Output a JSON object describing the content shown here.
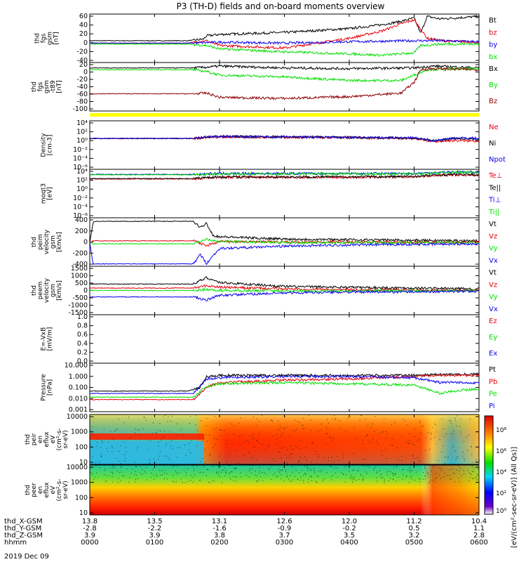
{
  "title": "P3 (TH-D) fields and on-board moments overview",
  "colors": {
    "black": "#000000",
    "red": "#e8000b",
    "green": "#00e000",
    "blue": "#0a00f0",
    "darkred": "#8b0000",
    "yellow": "#ffff00",
    "frame": "#000000"
  },
  "colorbar": {
    "ticks": [
      "10⁸",
      "10⁶",
      "10⁴",
      "10²",
      "10⁰"
    ],
    "label": "[eV/(cm²-sec-sr-eV)] (All Qs)]"
  },
  "chart_data": {
    "type": "line",
    "time_range": [
      "0000",
      "0600"
    ],
    "panels": [
      {
        "ylabel": [
          "thd",
          "fgs",
          "gsm",
          "[nT]"
        ],
        "yticks": [
          "60",
          "40",
          "20",
          "0",
          "-20",
          "-40"
        ],
        "ylim": [
          -40,
          60
        ],
        "series": [
          {
            "name": "Bt",
            "color": "black",
            "x": [
              0,
              1.5,
              1.75,
              1.8,
              2,
              3,
              4,
              4.5,
              4.8,
              5,
              5.1,
              5.2,
              5.4,
              6
            ],
            "y": [
              5,
              5,
              8,
              15,
              18,
              22,
              30,
              38,
              45,
              52,
              20,
              55,
              50,
              55
            ]
          },
          {
            "name": "bz",
            "color": "red",
            "x": [
              0,
              1.5,
              1.8,
              2,
              3,
              4,
              4.5,
              4.8,
              5,
              5.2,
              5.5,
              6
            ],
            "y": [
              0,
              0,
              5,
              -5,
              -10,
              10,
              25,
              40,
              48,
              10,
              4,
              2
            ]
          },
          {
            "name": "by",
            "color": "blue",
            "x": [
              0,
              1.5,
              2,
              3,
              4,
              5,
              5.4,
              6
            ],
            "y": [
              0,
              0,
              2,
              0,
              3,
              5,
              5,
              3
            ]
          },
          {
            "name": "bx",
            "color": "green",
            "x": [
              0,
              1.5,
              1.8,
              2,
              3,
              4,
              4.5,
              5,
              5.1,
              5.4,
              6
            ],
            "y": [
              -2,
              -2,
              -5,
              -12,
              -18,
              -22,
              -25,
              -20,
              -5,
              -2,
              -2
            ]
          }
        ]
      },
      {
        "ylabel": [
          "thd",
          "fgs",
          "gsm",
          "-t89",
          "[nT]"
        ],
        "yticks": [
          "20",
          "0",
          "-20",
          "-40",
          "-60",
          "-80",
          "-100"
        ],
        "ylim": [
          -110,
          25
        ],
        "series": [
          {
            "name": "Bx",
            "color": "black",
            "x": [
              0,
              1.6,
              1.8,
              2,
              3,
              4,
              5,
              5.3,
              6
            ],
            "y": [
              10,
              10,
              12,
              15,
              10,
              8,
              10,
              15,
              10
            ]
          },
          {
            "name": "By",
            "color": "green",
            "x": [
              0,
              1.6,
              1.8,
              2,
              3,
              4,
              4.8,
              5.2,
              6
            ],
            "y": [
              5,
              5,
              0,
              -10,
              -15,
              -25,
              -25,
              5,
              8
            ]
          },
          {
            "name": "Bz",
            "color": "darkred",
            "x": [
              0,
              1.6,
              1.8,
              2,
              3,
              4,
              4.8,
              5,
              5.1,
              5.3,
              6
            ],
            "y": [
              -62,
              -62,
              -60,
              -72,
              -75,
              -70,
              -60,
              -30,
              5,
              8,
              5
            ]
          }
        ]
      },
      {
        "ylabel": [
          "Density",
          "[cm-3]"
        ],
        "yticks": [
          "10⁴",
          "10²",
          "10⁰",
          "10⁻²",
          "10⁻⁴",
          "10⁻⁶"
        ],
        "ylim": [
          -7,
          4.5
        ],
        "log": true,
        "series": [
          {
            "name": "Ne",
            "color": "red",
            "x": [
              0,
              1.6,
              1.8,
              2,
              4,
              5,
              5.3,
              5.6,
              6
            ],
            "y": [
              0.3,
              0.3,
              0.6,
              0.7,
              0.5,
              0.3,
              -0.4,
              -0.2,
              -0.3
            ]
          },
          {
            "name": "Ni",
            "color": "black",
            "x": [
              0,
              1.6,
              1.8,
              2,
              4,
              5,
              5.3,
              5.6,
              6
            ],
            "y": [
              0.3,
              0.3,
              0.7,
              0.8,
              0.6,
              0.4,
              -0.3,
              0.3,
              0.1
            ]
          },
          {
            "name": "Npot",
            "color": "blue",
            "x": [
              0,
              1.6,
              1.8,
              2,
              4,
              5,
              5.3,
              5.6,
              6
            ],
            "y": [
              0.35,
              0.35,
              0.65,
              0.75,
              0.55,
              0.45,
              -0.2,
              0.4,
              0.4
            ]
          }
        ]
      },
      {
        "ylabel": [
          "moqt3",
          "[eV]"
        ],
        "yticks": [
          "10⁴",
          "10²",
          "10⁰",
          "10⁻²",
          "10⁻⁴",
          "10⁻⁶"
        ],
        "ylim": [
          -7,
          4.5
        ],
        "log": true,
        "series": [
          {
            "name": "Te⊥",
            "color": "red",
            "x": [
              0,
              1.6,
              1.8,
              2,
              4,
              5,
              5.3,
              5.6,
              6
            ],
            "y": [
              2.2,
              2.2,
              2.5,
              2.6,
              2.6,
              2.7,
              3.0,
              3.2,
              3.1
            ]
          },
          {
            "name": "Te||",
            "color": "black",
            "x": [
              0,
              1.6,
              1.8,
              2,
              4,
              5,
              5.3,
              5.6,
              6
            ],
            "y": [
              2.3,
              2.3,
              2.6,
              2.7,
              2.7,
              2.8,
              3.1,
              3.3,
              3.2
            ]
          },
          {
            "name": "Ti⊥",
            "color": "blue",
            "x": [
              0,
              1.6,
              1.8,
              2,
              4,
              5,
              5.3,
              5.6,
              6
            ],
            "y": [
              3.3,
              3.3,
              3.4,
              3.5,
              3.5,
              3.5,
              3.7,
              3.9,
              3.8
            ]
          },
          {
            "name": "Ti||",
            "color": "green",
            "x": [
              0,
              1.6,
              1.8,
              2,
              4,
              5,
              5.3,
              5.6,
              6
            ],
            "y": [
              3.2,
              3.2,
              3.3,
              3.4,
              3.4,
              3.4,
              3.6,
              3.8,
              3.7
            ]
          }
        ]
      },
      {
        "ylabel": [
          "thd",
          "peim",
          "velocity",
          "gsm",
          "[km/s]"
        ],
        "yticks": [
          "400",
          "200",
          "0",
          "-200",
          "-400"
        ],
        "ylim": [
          -400,
          420
        ],
        "series": [
          {
            "name": "Vt",
            "color": "black",
            "x": [
              0,
              0.05,
              0.06,
              1.6,
              1.7,
              1.8,
              1.9,
              2,
              3,
              4,
              5,
              6
            ],
            "y": [
              0,
              330,
              360,
              360,
              250,
              330,
              120,
              100,
              60,
              50,
              40,
              30
            ]
          },
          {
            "name": "Vz",
            "color": "red",
            "x": [
              0,
              0.05,
              0.06,
              1.6,
              1.8,
              2,
              3,
              4,
              5,
              6
            ],
            "y": [
              0,
              30,
              30,
              30,
              -50,
              20,
              10,
              10,
              5,
              5
            ]
          },
          {
            "name": "Vy",
            "color": "green",
            "x": [
              0,
              0.05,
              0.06,
              1.6,
              1.8,
              2,
              3,
              4,
              5,
              6
            ],
            "y": [
              0,
              -20,
              -20,
              -20,
              60,
              20,
              0,
              0,
              0,
              0
            ]
          },
          {
            "name": "Vx",
            "color": "blue",
            "x": [
              0,
              0.05,
              0.06,
              1.6,
              1.7,
              1.8,
              2,
              3,
              4,
              5,
              6
            ],
            "y": [
              0,
              -350,
              -360,
              -360,
              -200,
              -350,
              -100,
              -60,
              -40,
              -30,
              -20
            ]
          }
        ]
      },
      {
        "ylabel": [
          "thd",
          "peem",
          "velocity",
          "gsm",
          "[km/s]"
        ],
        "yticks": [
          "1500",
          "1000",
          "500",
          "0",
          "-500",
          "-1000",
          "-1500"
        ],
        "ylim": [
          -1500,
          1500
        ],
        "series": [
          {
            "name": "Vt",
            "color": "black",
            "x": [
              0,
              1.6,
              1.7,
              1.8,
              2,
              3,
              4,
              5,
              6
            ],
            "y": [
              400,
              400,
              600,
              800,
              500,
              250,
              200,
              150,
              100
            ]
          },
          {
            "name": "Vz",
            "color": "red",
            "x": [
              0,
              1.6,
              1.8,
              2,
              3,
              4,
              5,
              6
            ],
            "y": [
              150,
              150,
              300,
              200,
              100,
              50,
              30,
              20
            ]
          },
          {
            "name": "Vy",
            "color": "green",
            "x": [
              0,
              1.6,
              1.8,
              2,
              3,
              4,
              5,
              6
            ],
            "y": [
              0,
              0,
              50,
              0,
              -20,
              -20,
              -20,
              -20
            ]
          },
          {
            "name": "Vx",
            "color": "blue",
            "x": [
              0,
              1.6,
              1.8,
              2,
              3,
              4,
              5,
              6
            ],
            "y": [
              -400,
              -400,
              -600,
              -300,
              -150,
              -100,
              -80,
              -50
            ]
          }
        ]
      },
      {
        "ylabel": [
          "E=-VxB",
          "[mV/m]"
        ],
        "yticks": [
          "1.0",
          "0.8",
          "0.6",
          "0.4",
          "0.2",
          "0.0"
        ],
        "ylim": [
          0,
          1
        ],
        "series": [
          {
            "name": "Ez",
            "color": "red",
            "x": [],
            "y": []
          },
          {
            "name": "Ey",
            "color": "green",
            "x": [],
            "y": []
          },
          {
            "name": "Ex",
            "color": "blue",
            "x": [],
            "y": []
          }
        ]
      },
      {
        "ylabel": [
          "Pressure",
          "[nPa]"
        ],
        "yticks": [
          "10.000",
          "1.000",
          "0.100",
          "0.010",
          "0.001"
        ],
        "ylim": [
          -3,
          1
        ],
        "log": true,
        "series": [
          {
            "name": "Pt",
            "color": "black",
            "x": [
              0,
              1.5,
              1.7,
              1.8,
              2,
              3,
              4,
              5,
              5.3,
              6
            ],
            "y": [
              -1.3,
              -1.3,
              -1.0,
              -0.1,
              0.0,
              0.0,
              0.0,
              0.0,
              0.05,
              0.1
            ]
          },
          {
            "name": "Pb",
            "color": "red",
            "x": [
              0,
              1.6,
              1.8,
              2,
              3,
              4,
              5,
              5.3,
              6
            ],
            "y": [
              -2.0,
              -2.0,
              -1.0,
              -0.6,
              -0.4,
              -0.3,
              -0.1,
              0.0,
              0.0
            ]
          },
          {
            "name": "Pe",
            "color": "green",
            "x": [
              0,
              1.6,
              1.8,
              2,
              3,
              4,
              5,
              5.4,
              5.6,
              6
            ],
            "y": [
              -1.8,
              -1.8,
              -0.9,
              -0.7,
              -0.6,
              -0.7,
              -0.8,
              -1.5,
              -1.3,
              -1.1
            ]
          },
          {
            "name": "Pi",
            "color": "blue",
            "x": [
              0,
              1.6,
              1.8,
              2,
              3,
              4,
              5,
              5.4,
              6
            ],
            "y": [
              -1.5,
              -1.5,
              -0.3,
              -0.2,
              -0.1,
              -0.1,
              -0.2,
              -0.6,
              -0.6
            ]
          }
        ]
      },
      {
        "type": "heatmap",
        "ylabel": [
          "thd",
          "peir",
          "en",
          "eflux",
          "eV",
          "(cm²-s-",
          "sr-eV)"
        ],
        "yticks": [
          "10000",
          "1000",
          "100",
          "10"
        ]
      },
      {
        "type": "heatmap",
        "ylabel": [
          "thd",
          "peer",
          "en",
          "eflux",
          "eV",
          "(cm²-s-",
          "sr-eV)"
        ],
        "yticks": [
          "10000",
          "1000",
          "100",
          "10"
        ]
      }
    ],
    "xaxis_rows": [
      {
        "label": "thd_X-GSM",
        "values": [
          "13.8",
          "13.5",
          "13.1",
          "12.6",
          "12.0",
          "11.2",
          "10.4"
        ]
      },
      {
        "label": "thd_Y-GSM",
        "values": [
          "-2.8",
          "-2.2",
          "-1.6",
          "-0.9",
          "-0.2",
          "0.5",
          "1.1"
        ]
      },
      {
        "label": "thd_Z-GSM",
        "values": [
          "3.9",
          "3.9",
          "3.8",
          "3.7",
          "3.5",
          "3.2",
          "2.8"
        ]
      },
      {
        "label": "hhmm",
        "values": [
          "0000",
          "0100",
          "0200",
          "0300",
          "0400",
          "0500",
          "0600"
        ]
      }
    ],
    "date": "2019 Dec 09"
  }
}
